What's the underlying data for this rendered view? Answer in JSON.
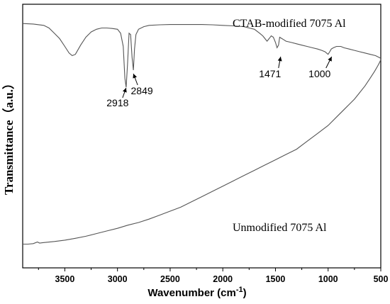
{
  "chart_data": {
    "type": "line",
    "xlabel_main": "Wavenumber (cm",
    "xlabel_sup": "-1",
    "xlabel_end": ")",
    "ylabel": "Transmittance（a.u.）",
    "xlim": [
      3900,
      500
    ],
    "x_reversed": true,
    "ylim": [
      0,
      100
    ],
    "y_ticks_labeled": false,
    "x_ticks": [
      3500,
      3000,
      2500,
      2000,
      1500,
      1000,
      500
    ],
    "grid": false,
    "series": [
      {
        "name": "CTAB-modified 7075 Al",
        "x": [
          3900,
          3800,
          3700,
          3650,
          3600,
          3550,
          3500,
          3460,
          3430,
          3400,
          3350,
          3300,
          3250,
          3200,
          3150,
          3100,
          3050,
          3000,
          2970,
          2945,
          2930,
          2918,
          2905,
          2890,
          2875,
          2862,
          2849,
          2838,
          2825,
          2800,
          2750,
          2700,
          2600,
          2500,
          2400,
          2300,
          2200,
          2100,
          2000,
          1900,
          1800,
          1750,
          1700,
          1650,
          1620,
          1600,
          1580,
          1560,
          1540,
          1520,
          1500,
          1485,
          1471,
          1460,
          1440,
          1420,
          1400,
          1350,
          1300,
          1250,
          1200,
          1150,
          1100,
          1060,
          1030,
          1015,
          1000,
          985,
          970,
          950,
          920,
          880,
          850,
          800,
          750,
          700,
          650,
          600,
          550,
          500
        ],
        "y": [
          92.7,
          92.5,
          92.0,
          91.0,
          89.0,
          87.0,
          84.0,
          81.5,
          80.5,
          81.0,
          84.5,
          87.5,
          89.5,
          90.5,
          91.0,
          91.0,
          90.8,
          90.5,
          89.0,
          84.0,
          72.0,
          68.5,
          77.0,
          89.0,
          88.5,
          80.0,
          75.0,
          83.0,
          88.5,
          90.5,
          91.5,
          92.0,
          92.2,
          92.3,
          92.3,
          92.3,
          92.3,
          92.2,
          92.0,
          91.8,
          91.5,
          91.0,
          90.5,
          89.0,
          88.0,
          87.0,
          86.0,
          87.0,
          88.0,
          87.5,
          85.5,
          83.5,
          84.5,
          87.5,
          87.0,
          86.5,
          86.0,
          85.5,
          85.0,
          84.5,
          84.0,
          83.5,
          83.0,
          82.5,
          82.0,
          81.5,
          81.0,
          82.0,
          83.0,
          83.5,
          84.0,
          84.0,
          83.5,
          83.0,
          82.5,
          82.0,
          81.5,
          81.0,
          80.5,
          79.5
        ]
      },
      {
        "name": "Unmodified 7075 Al",
        "x": [
          3900,
          3850,
          3800,
          3760,
          3740,
          3700,
          3600,
          3500,
          3400,
          3300,
          3200,
          3100,
          3000,
          2900,
          2800,
          2700,
          2600,
          2500,
          2400,
          2300,
          2200,
          2100,
          2000,
          1900,
          1800,
          1700,
          1600,
          1500,
          1400,
          1300,
          1200,
          1100,
          1000,
          900,
          850,
          800,
          750,
          700,
          650,
          600,
          560,
          530,
          510,
          500
        ],
        "y": [
          9.0,
          9.0,
          9.2,
          9.8,
          9.4,
          9.6,
          10.0,
          10.5,
          11.2,
          12.0,
          13.0,
          14.0,
          15.0,
          16.2,
          17.2,
          18.5,
          20.0,
          21.5,
          23.0,
          25.0,
          27.0,
          29.0,
          31.0,
          33.0,
          35.0,
          37.0,
          39.0,
          41.0,
          43.0,
          45.0,
          48.0,
          51.0,
          54.0,
          58.0,
          60.0,
          62.0,
          64.0,
          66.5,
          69.0,
          72.0,
          74.5,
          76.5,
          78.0,
          79.0
        ]
      }
    ],
    "annotations": [
      {
        "label": "2918",
        "x": 2918
      },
      {
        "label": "2849",
        "x": 2849
      },
      {
        "label": "1471",
        "x": 1471
      },
      {
        "label": "1000",
        "x": 1000
      }
    ]
  }
}
